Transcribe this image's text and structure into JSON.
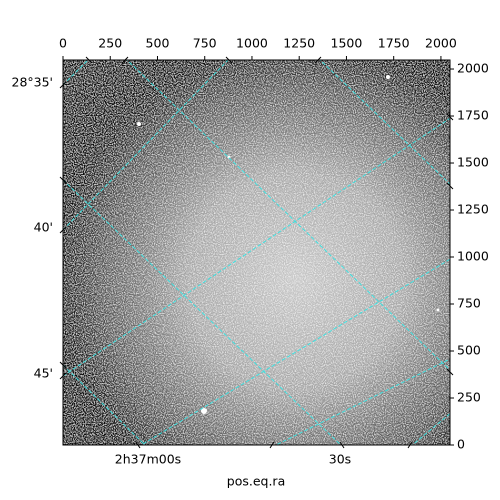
{
  "chart_data": {
    "type": "image",
    "xlabel": "pos.eq.ra",
    "xlim": [
      0,
      2048
    ],
    "xticks": [
      0,
      250,
      500,
      750,
      1000,
      1250,
      1500,
      1750,
      2000
    ],
    "ylim": [
      0,
      2048
    ],
    "yticks": [
      0,
      250,
      500,
      750,
      1000,
      1250,
      1500,
      1750,
      2000
    ],
    "dec_ticks": [
      "28°35'",
      "40'",
      "45'"
    ],
    "ra_ticks": [
      "2h37m00s",
      "30s"
    ]
  }
}
